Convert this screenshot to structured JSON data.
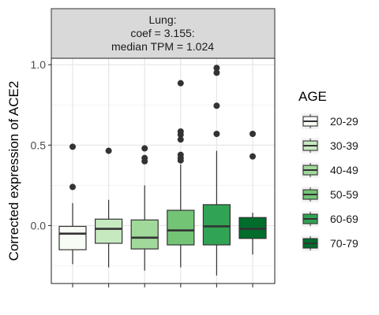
{
  "chart_data": {
    "type": "boxplot",
    "facet": {
      "lines": [
        "Lung:",
        "coef = 3.155:",
        "median TPM = 1.024"
      ]
    },
    "ylabel": "Corrected expression of ACE2",
    "xlabel": "",
    "ylim": [
      -0.36,
      1.04
    ],
    "yticks": [
      0.0,
      0.5,
      1.0
    ],
    "ytick_labels": [
      "0.0",
      "0.5",
      "1.0"
    ],
    "grid": true,
    "legend": {
      "title": "AGE",
      "position": "right"
    },
    "groups": [
      {
        "label": "20-29",
        "color": "#f7fcf5",
        "whisker_low": -0.24,
        "q1": -0.15,
        "median": -0.05,
        "q3": -0.005,
        "whisker_high": 0.14,
        "outliers": [
          0.49,
          0.24
        ]
      },
      {
        "label": "30-39",
        "color": "#c7e9c0",
        "whisker_low": -0.26,
        "q1": -0.11,
        "median": -0.02,
        "q3": 0.04,
        "whisker_high": 0.16,
        "outliers": [
          0.465
        ]
      },
      {
        "label": "40-49",
        "color": "#a1d99b",
        "whisker_low": -0.28,
        "q1": -0.145,
        "median": -0.075,
        "q3": 0.035,
        "whisker_high": 0.25,
        "outliers": [
          0.48,
          0.42,
          0.4
        ]
      },
      {
        "label": "50-59",
        "color": "#74c476",
        "whisker_low": -0.26,
        "q1": -0.12,
        "median": -0.03,
        "q3": 0.095,
        "whisker_high": 0.38,
        "outliers": [
          0.885,
          0.585,
          0.565,
          0.535,
          0.44,
          0.42,
          0.405
        ]
      },
      {
        "label": "60-69",
        "color": "#31a354",
        "whisker_low": -0.31,
        "q1": -0.12,
        "median": -0.005,
        "q3": 0.13,
        "whisker_high": 0.465,
        "outliers": [
          0.98,
          0.95,
          0.745,
          0.57
        ]
      },
      {
        "label": "70-79",
        "color": "#006d2c",
        "whisker_low": -0.18,
        "q1": -0.08,
        "median": -0.02,
        "q3": 0.05,
        "whisker_high": 0.08,
        "outliers": [
          0.57,
          0.43
        ]
      }
    ]
  }
}
